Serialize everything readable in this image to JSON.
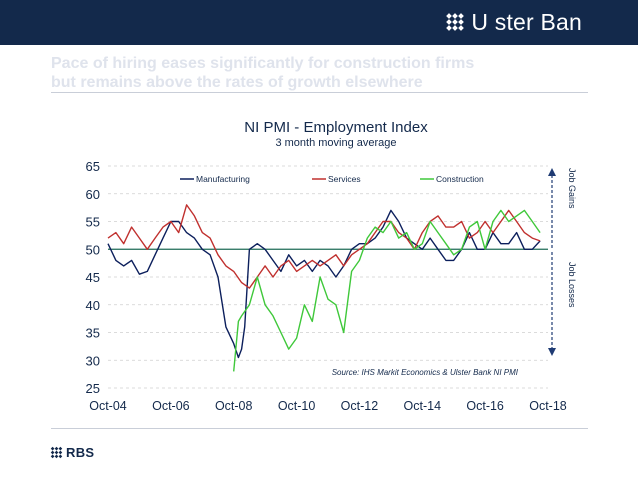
{
  "brand": {
    "name": "U ster Ban",
    "footer": "RBS"
  },
  "headline": {
    "line1": "Pace of hiring eases significantly for construction firms",
    "line2": "but remains above the rates of growth elsewhere"
  },
  "colors": {
    "banner": "#13294b",
    "manufacturing": "#0c1f5c",
    "services": "#c0302e",
    "construction": "#3fc83a",
    "baseline": "#1f6b57",
    "arrow": "#1f3b73"
  },
  "icons": {
    "brand": "saltire-logo-icon",
    "footer": "rbs-saltire-icon"
  },
  "chart_data": {
    "type": "line",
    "title": "NI PMI - Employment Index",
    "subtitle": "3 month moving average",
    "xlabel": "",
    "ylabel": "",
    "xlim": [
      2004.75,
      2018.75
    ],
    "ylim": [
      25,
      65
    ],
    "yticks": [
      25,
      30,
      35,
      40,
      45,
      50,
      55,
      60,
      65
    ],
    "xticks": [
      {
        "value": 2004.75,
        "label": "Oct-04"
      },
      {
        "value": 2006.75,
        "label": "Oct-06"
      },
      {
        "value": 2008.75,
        "label": "Oct-08"
      },
      {
        "value": 2010.75,
        "label": "Oct-10"
      },
      {
        "value": 2012.75,
        "label": "Oct-12"
      },
      {
        "value": 2014.75,
        "label": "Oct-14"
      },
      {
        "value": 2016.75,
        "label": "Oct-16"
      },
      {
        "value": 2018.75,
        "label": "Oct-18"
      }
    ],
    "baseline": 50,
    "grid": "horizontal dashed",
    "legend_position": "top",
    "annotations": {
      "upper": "Job Gains",
      "lower": "Job Losses",
      "source": "Source: IHS Markit Economics & Ulster Bank NI PMI"
    },
    "series": [
      {
        "name": "Manufacturing",
        "x": [
          2004.75,
          2005.0,
          2005.25,
          2005.5,
          2005.75,
          2006.0,
          2006.25,
          2006.5,
          2006.75,
          2007.0,
          2007.25,
          2007.5,
          2007.75,
          2008.0,
          2008.25,
          2008.5,
          2008.75,
          2008.9,
          2009.0,
          2009.1,
          2009.25,
          2009.5,
          2009.75,
          2010.0,
          2010.25,
          2010.5,
          2010.75,
          2011.0,
          2011.25,
          2011.5,
          2011.75,
          2012.0,
          2012.25,
          2012.5,
          2012.75,
          2013.0,
          2013.25,
          2013.5,
          2013.75,
          2014.0,
          2014.25,
          2014.5,
          2014.75,
          2015.0,
          2015.25,
          2015.5,
          2015.75,
          2016.0,
          2016.25,
          2016.5,
          2016.75,
          2017.0,
          2017.25,
          2017.5,
          2017.75,
          2018.0,
          2018.25,
          2018.5
        ],
        "values": [
          51,
          48,
          47,
          48,
          45.5,
          46,
          49,
          52,
          55,
          55,
          53,
          52,
          50,
          49,
          45,
          36,
          33,
          30.5,
          32,
          36,
          50,
          51,
          50,
          48,
          46,
          49,
          47,
          48,
          46,
          48,
          47,
          45,
          47,
          50,
          51,
          51,
          52,
          54,
          57,
          55,
          52,
          51,
          50,
          52,
          50,
          48,
          48,
          50,
          53,
          50,
          50,
          53,
          51,
          51,
          53,
          50,
          50,
          51.5
        ]
      },
      {
        "name": "Services",
        "x": [
          2004.75,
          2005.0,
          2005.25,
          2005.5,
          2005.75,
          2006.0,
          2006.25,
          2006.5,
          2006.75,
          2007.0,
          2007.25,
          2007.5,
          2007.75,
          2008.0,
          2008.25,
          2008.5,
          2008.75,
          2009.0,
          2009.25,
          2009.5,
          2009.75,
          2010.0,
          2010.25,
          2010.5,
          2010.75,
          2011.0,
          2011.25,
          2011.5,
          2011.75,
          2012.0,
          2012.25,
          2012.5,
          2012.75,
          2013.0,
          2013.25,
          2013.5,
          2013.75,
          2014.0,
          2014.25,
          2014.5,
          2014.75,
          2015.0,
          2015.25,
          2015.5,
          2015.75,
          2016.0,
          2016.25,
          2016.5,
          2016.75,
          2017.0,
          2017.25,
          2017.5,
          2017.75,
          2018.0,
          2018.25,
          2018.5
        ],
        "values": [
          52,
          53,
          51,
          54,
          52,
          50,
          52,
          54,
          55,
          53,
          58,
          56,
          53,
          52,
          49,
          47,
          46,
          44,
          43,
          45,
          47,
          45,
          47,
          48,
          46,
          47,
          48,
          47,
          48,
          49,
          47,
          49,
          50,
          51,
          53,
          55,
          55,
          53,
          52,
          50,
          53,
          55,
          56,
          54,
          54,
          55,
          52,
          53,
          55,
          53,
          55,
          57,
          55,
          53,
          52,
          51.5
        ]
      },
      {
        "name": "Construction",
        "x": [
          2008.75,
          2008.9,
          2009.0,
          2009.25,
          2009.5,
          2009.75,
          2010.0,
          2010.25,
          2010.5,
          2010.75,
          2011.0,
          2011.25,
          2011.5,
          2011.75,
          2012.0,
          2012.25,
          2012.5,
          2012.75,
          2013.0,
          2013.25,
          2013.5,
          2013.75,
          2014.0,
          2014.25,
          2014.5,
          2014.75,
          2015.0,
          2015.25,
          2015.5,
          2015.75,
          2016.0,
          2016.25,
          2016.5,
          2016.75,
          2017.0,
          2017.25,
          2017.5,
          2017.75,
          2018.0,
          2018.25,
          2018.5
        ],
        "values": [
          28,
          37,
          38,
          40,
          45,
          40,
          38,
          35,
          32,
          34,
          40,
          37,
          45,
          41,
          40,
          35,
          46,
          48,
          52,
          54,
          53,
          55,
          52,
          53,
          50,
          51,
          55,
          53,
          51,
          49,
          50,
          54,
          55,
          50,
          55,
          57,
          55,
          56,
          57,
          55,
          53
        ]
      }
    ]
  }
}
